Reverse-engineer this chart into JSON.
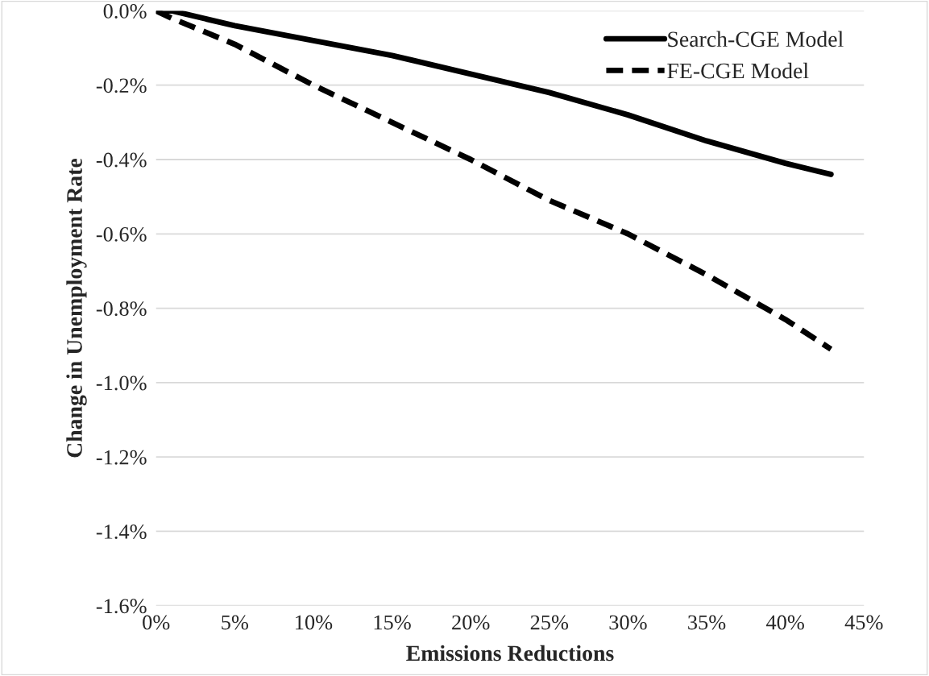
{
  "chart_data": {
    "type": "line",
    "xlabel": "Emissions Reductions",
    "ylabel": "Change in Unemployment Rate",
    "xlim": [
      0,
      45
    ],
    "xticks": [
      {
        "value": 0,
        "label": "0%"
      },
      {
        "value": 5,
        "label": "5%"
      },
      {
        "value": 10,
        "label": "10%"
      },
      {
        "value": 15,
        "label": "15%"
      },
      {
        "value": 20,
        "label": "20%"
      },
      {
        "value": 25,
        "label": "25%"
      },
      {
        "value": 30,
        "label": "30%"
      },
      {
        "value": 35,
        "label": "35%"
      },
      {
        "value": 40,
        "label": "40%"
      },
      {
        "value": 45,
        "label": "45%"
      }
    ],
    "ylim": [
      -1.6,
      0
    ],
    "yticks": [
      {
        "value": 0,
        "label": "0.0%"
      },
      {
        "value": -0.2,
        "label": "-0.2%"
      },
      {
        "value": -0.4,
        "label": "-0.4%"
      },
      {
        "value": -0.6,
        "label": "-0.6%"
      },
      {
        "value": -0.8,
        "label": "-0.8%"
      },
      {
        "value": -1.0,
        "label": "-1.0%"
      },
      {
        "value": -1.2,
        "label": "-1.2%"
      },
      {
        "value": -1.4,
        "label": "-1.4%"
      },
      {
        "value": -1.6,
        "label": "-1.6%"
      }
    ],
    "grid": "y",
    "legend": "top right",
    "marker": "none",
    "x": [
      0,
      1,
      5,
      10,
      15,
      20,
      25,
      30,
      35,
      40,
      42.9
    ],
    "series": [
      {
        "name": "Search-CGE Model",
        "color": "#000000",
        "line_style": "solid",
        "values": [
          0,
          0,
          -0.04,
          -0.08,
          -0.12,
          -0.17,
          -0.22,
          -0.28,
          -0.35,
          -0.41,
          -0.44
        ]
      },
      {
        "name": "FE-CGE Model",
        "color": "#000000",
        "line_style": "dashed",
        "values": [
          0,
          -0.02,
          -0.09,
          -0.2,
          -0.3,
          -0.4,
          -0.51,
          -0.6,
          -0.71,
          -0.83,
          -0.91
        ]
      }
    ]
  }
}
